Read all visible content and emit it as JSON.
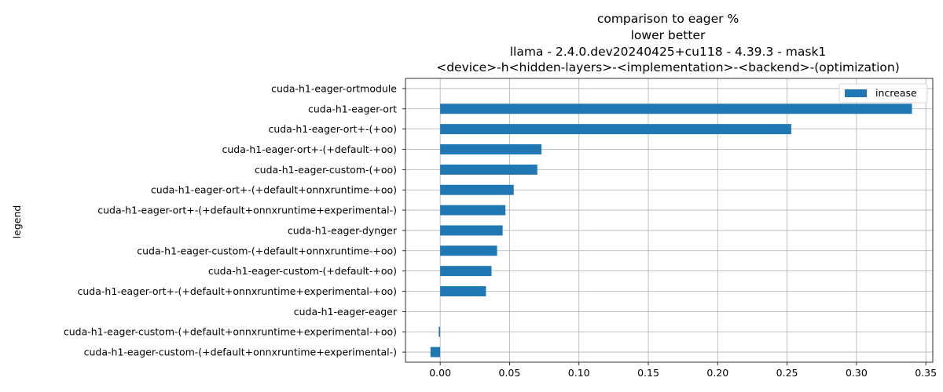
{
  "chart_data": {
    "type": "bar",
    "orientation": "horizontal",
    "title": [
      "comparison to eager %",
      "lower better",
      "llama - 2.4.0.dev20240425+cu118 - 4.39.3 - mask1",
      "<device>-h<hidden-layers>-<implementation>-<backend>-(optimization)"
    ],
    "xlabel": "",
    "ylabel": "legend",
    "xlim": [
      -0.025,
      0.355
    ],
    "xticks": [
      0.0,
      0.05,
      0.1,
      0.15,
      0.2,
      0.25,
      0.3,
      0.35
    ],
    "xtick_labels": [
      "0.00",
      "0.05",
      "0.10",
      "0.15",
      "0.20",
      "0.25",
      "0.30",
      "0.35"
    ],
    "grid": true,
    "legend_position": "top-right",
    "bar_color": "#1f77b4",
    "categories": [
      "cuda-h1-eager-ortmodule",
      "cuda-h1-eager-ort",
      "cuda-h1-eager-ort+-(+oo)",
      "cuda-h1-eager-ort+-(+default-+oo)",
      "cuda-h1-eager-custom-(+oo)",
      "cuda-h1-eager-ort+-(+default+onnxruntime-+oo)",
      "cuda-h1-eager-ort+-(+default+onnxruntime+experimental-)",
      "cuda-h1-eager-dynger",
      "cuda-h1-eager-custom-(+default+onnxruntime-+oo)",
      "cuda-h1-eager-custom-(+default-+oo)",
      "cuda-h1-eager-ort+-(+default+onnxruntime+experimental-+oo)",
      "cuda-h1-eager-eager",
      "cuda-h1-eager-custom-(+default+onnxruntime+experimental-+oo)",
      "cuda-h1-eager-custom-(+default+onnxruntime+experimental-)"
    ],
    "series": [
      {
        "name": "increase",
        "values": [
          0.0,
          0.34,
          0.253,
          0.073,
          0.07,
          0.053,
          0.047,
          0.045,
          0.041,
          0.037,
          0.033,
          0.0,
          -0.001,
          -0.007
        ]
      }
    ]
  }
}
